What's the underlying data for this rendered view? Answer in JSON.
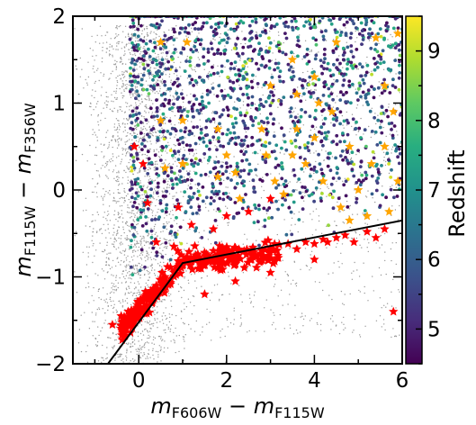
{
  "chart_data": {
    "type": "scatter",
    "title": "",
    "xlabel": {
      "main": "m",
      "sub1": "F606W",
      "minus": " − ",
      "main2": "m",
      "sub2": "F115W"
    },
    "ylabel": {
      "main": "m",
      "sub1": "F115W",
      "minus": " − ",
      "main2": "m",
      "sub2": "F356W"
    },
    "xlim": [
      -1.5,
      6
    ],
    "ylim": [
      -2,
      2
    ],
    "xticks": [
      0,
      2,
      4,
      6
    ],
    "xtick_labels": [
      "0",
      "2",
      "4",
      "6"
    ],
    "yticks": [
      -2,
      -1,
      0,
      1,
      2
    ],
    "ytick_labels": [
      "−2",
      "−1",
      "0",
      "1",
      "2"
    ],
    "colorbar": {
      "label": "Redshift",
      "range": [
        4.5,
        9.5
      ],
      "ticks": [
        5,
        6,
        7,
        8,
        9
      ],
      "tick_labels": [
        "5",
        "6",
        "7",
        "8",
        "9"
      ],
      "colormap": [
        "#440154",
        "#472d7b",
        "#3b528b",
        "#2c728e",
        "#21918c",
        "#28ae80",
        "#5ec962",
        "#addc30",
        "#fde725"
      ]
    },
    "selection_boundary": {
      "color": "#000000",
      "vertices": [
        [
          -0.7,
          -2.0
        ],
        [
          1.0,
          -0.84
        ],
        [
          6.0,
          -0.35
        ]
      ]
    },
    "series": [
      {
        "name": "",
        "role": "background field sources (grey)",
        "color": "#8c8c8c",
        "marker": "small dot",
        "region": {
          "x_center": -0.1,
          "x_spread": 0.55,
          "x_tail_to": 6.0,
          "y_range": [
            -2.0,
            1.9
          ]
        }
      },
      {
        "name": "",
        "role": "galaxies colored by redshift",
        "marker": "dot",
        "region": {
          "x_range": [
            -0.2,
            6.0
          ],
          "y_range": [
            -1.8,
            2.0
          ]
        },
        "redshift_range": [
          4.6,
          9.4
        ]
      },
      {
        "name": "",
        "role": "red stars (selected, dense locus)",
        "color": "#ff0000",
        "marker": "star",
        "points": [
          [
            -0.6,
            -1.55
          ],
          [
            -0.4,
            -1.45
          ],
          [
            -0.3,
            -1.6
          ],
          [
            -0.1,
            -1.5
          ],
          [
            0.0,
            -1.35
          ],
          [
            0.1,
            -1.4
          ],
          [
            0.2,
            -1.2
          ],
          [
            0.3,
            -1.3
          ],
          [
            0.4,
            -1.1
          ],
          [
            0.5,
            -1.15
          ],
          [
            0.6,
            -1.0
          ],
          [
            0.7,
            -1.05
          ],
          [
            0.8,
            -0.95
          ],
          [
            0.9,
            -0.88
          ],
          [
            1.0,
            -0.85
          ],
          [
            1.1,
            -0.78
          ],
          [
            1.2,
            -0.82
          ],
          [
            1.3,
            -0.75
          ],
          [
            1.4,
            -0.8
          ],
          [
            1.5,
            -0.72
          ],
          [
            1.6,
            -0.78
          ],
          [
            1.7,
            -0.7
          ],
          [
            1.8,
            -0.74
          ],
          [
            1.9,
            -0.68
          ],
          [
            2.0,
            -0.72
          ],
          [
            2.2,
            -0.68
          ],
          [
            2.4,
            -0.7
          ],
          [
            2.6,
            -0.66
          ],
          [
            2.8,
            -0.7
          ],
          [
            3.0,
            -0.66
          ],
          [
            3.2,
            -0.63
          ],
          [
            3.4,
            -0.62
          ],
          [
            3.6,
            -0.68
          ],
          [
            3.8,
            -0.6
          ],
          [
            4.0,
            -0.62
          ],
          [
            4.2,
            -0.57
          ],
          [
            4.3,
            -0.6
          ],
          [
            4.5,
            -0.55
          ],
          [
            4.7,
            -0.52
          ],
          [
            4.9,
            -0.6
          ],
          [
            5.2,
            -0.48
          ],
          [
            5.4,
            -0.55
          ],
          [
            5.6,
            -0.45
          ],
          [
            5.8,
            -1.4
          ],
          [
            4.0,
            -0.8
          ],
          [
            3.0,
            -0.95
          ],
          [
            2.2,
            -1.05
          ],
          [
            1.5,
            -1.2
          ],
          [
            0.8,
            -0.65
          ],
          [
            -0.1,
            0.5
          ],
          [
            0.1,
            0.3
          ],
          [
            0.2,
            -0.15
          ],
          [
            1.0,
            0.3
          ],
          [
            1.2,
            -0.4
          ],
          [
            0.9,
            -0.2
          ],
          [
            2.5,
            -0.25
          ],
          [
            1.7,
            -0.45
          ],
          [
            0.4,
            -0.6
          ],
          [
            3.0,
            -0.1
          ],
          [
            2.0,
            -0.3
          ]
        ]
      },
      {
        "name": "",
        "role": "orange stars",
        "color": "#ffa500",
        "marker": "star",
        "points": [
          [
            0.5,
            1.7
          ],
          [
            1.1,
            1.7
          ],
          [
            0.5,
            0.8
          ],
          [
            1.0,
            0.8
          ],
          [
            0.6,
            0.25
          ],
          [
            1.0,
            0.3
          ],
          [
            1.8,
            0.7
          ],
          [
            2.0,
            0.4
          ],
          [
            1.8,
            0.15
          ],
          [
            2.2,
            0.2
          ],
          [
            2.3,
            -0.1
          ],
          [
            2.8,
            0.7
          ],
          [
            2.9,
            0.4
          ],
          [
            3.1,
            0.1
          ],
          [
            3.3,
            -0.05
          ],
          [
            3.5,
            0.4
          ],
          [
            3.6,
            0.7
          ],
          [
            3.8,
            0.3
          ],
          [
            4.0,
            1.3
          ],
          [
            4.0,
            0.6
          ],
          [
            4.2,
            0.1
          ],
          [
            4.4,
            0.9
          ],
          [
            4.6,
            -0.2
          ],
          [
            4.8,
            0.5
          ],
          [
            5.0,
            0.0
          ],
          [
            5.2,
            -0.3
          ],
          [
            5.3,
            0.3
          ],
          [
            5.6,
            1.2
          ],
          [
            5.6,
            0.5
          ],
          [
            5.8,
            0.9
          ],
          [
            5.9,
            1.8
          ],
          [
            5.9,
            0.1
          ],
          [
            3.0,
            1.2
          ],
          [
            3.6,
            1.1
          ],
          [
            4.5,
            1.7
          ],
          [
            5.4,
            1.75
          ],
          [
            3.5,
            1.5
          ],
          [
            4.1,
            1.0
          ],
          [
            4.8,
            -0.35
          ],
          [
            5.7,
            -0.25
          ]
        ]
      }
    ]
  }
}
